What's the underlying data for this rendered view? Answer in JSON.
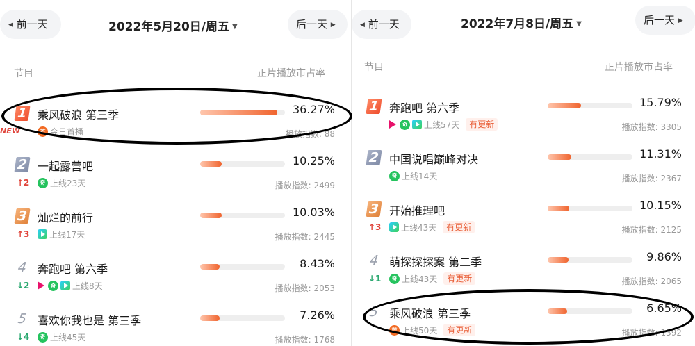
{
  "left": {
    "prev_label": "前一天",
    "next_label": "后一天",
    "date": "2022年5月20日/周五",
    "col_program": "节目",
    "col_share": "正片播放市占率",
    "index_prefix": "播放指数:",
    "rows": [
      {
        "rank": "1",
        "title": "乘风破浪 第三季",
        "badge": "NEW",
        "icons": [
          "mgtv-icon"
        ],
        "meta": "今日首播",
        "tag": "",
        "share": "36.27%",
        "share_value": 36.27,
        "index": "88"
      },
      {
        "rank": "2",
        "title": "一起露营吧",
        "change": "↑2",
        "change_dir": "up",
        "icons": [
          "iqiyi-icon"
        ],
        "meta": "上线23天",
        "tag": "",
        "share": "10.25%",
        "share_value": 10.25,
        "index": "2499"
      },
      {
        "rank": "3",
        "title": "灿烂的前行",
        "change": "↑3",
        "change_dir": "up",
        "icons": [
          "tencent-video-icon"
        ],
        "meta": "上线17天",
        "tag": "",
        "share": "10.03%",
        "share_value": 10.03,
        "index": "2445"
      },
      {
        "rank": "4",
        "title": "奔跑吧 第六季",
        "change": "↓2",
        "change_dir": "down",
        "icons": [
          "youku-icon",
          "iqiyi-icon",
          "tencent-video-icon"
        ],
        "meta": "上线8天",
        "tag": "",
        "share": "8.43%",
        "share_value": 8.43,
        "index": "2053"
      },
      {
        "rank": "5",
        "title": "喜欢你我也是 第三季",
        "change": "↓4",
        "change_dir": "down",
        "icons": [
          "iqiyi-icon"
        ],
        "meta": "上线45天",
        "tag": "",
        "share": "7.26%",
        "share_value": 7.26,
        "index": "1768"
      }
    ]
  },
  "right": {
    "prev_label": "前一天",
    "next_label": "后一天",
    "date": "2022年7月8日/周五",
    "col_program": "节目",
    "col_share": "正片播放市占率",
    "index_prefix": "播放指数:",
    "rows": [
      {
        "rank": "1",
        "title": "奔跑吧 第六季",
        "icons": [
          "youku-icon",
          "iqiyi-icon",
          "tencent-video-icon"
        ],
        "meta": "上线57天",
        "tag": "有更新",
        "share": "15.79%",
        "share_value": 15.79,
        "index": "3305"
      },
      {
        "rank": "2",
        "title": "中国说唱巅峰对决",
        "icons": [
          "iqiyi-icon"
        ],
        "meta": "上线14天",
        "tag": "",
        "share": "11.31%",
        "share_value": 11.31,
        "index": "2367"
      },
      {
        "rank": "3",
        "title": "开始推理吧",
        "change": "↑3",
        "change_dir": "up",
        "icons": [
          "tencent-video-icon"
        ],
        "meta": "上线43天",
        "tag": "有更新",
        "share": "10.15%",
        "share_value": 10.15,
        "index": "2125"
      },
      {
        "rank": "4",
        "title": "萌探探探案 第二季",
        "change": "↓1",
        "change_dir": "down",
        "icons": [
          "iqiyi-icon"
        ],
        "meta": "上线43天",
        "tag": "有更新",
        "share": "9.86%",
        "share_value": 9.86,
        "index": "2065"
      },
      {
        "rank": "5",
        "title": "乘风破浪 第三季",
        "icons": [
          "mgtv-icon"
        ],
        "meta": "上线50天",
        "tag": "有更新",
        "share": "6.65%",
        "share_value": 6.65,
        "index": "1392"
      }
    ]
  }
}
